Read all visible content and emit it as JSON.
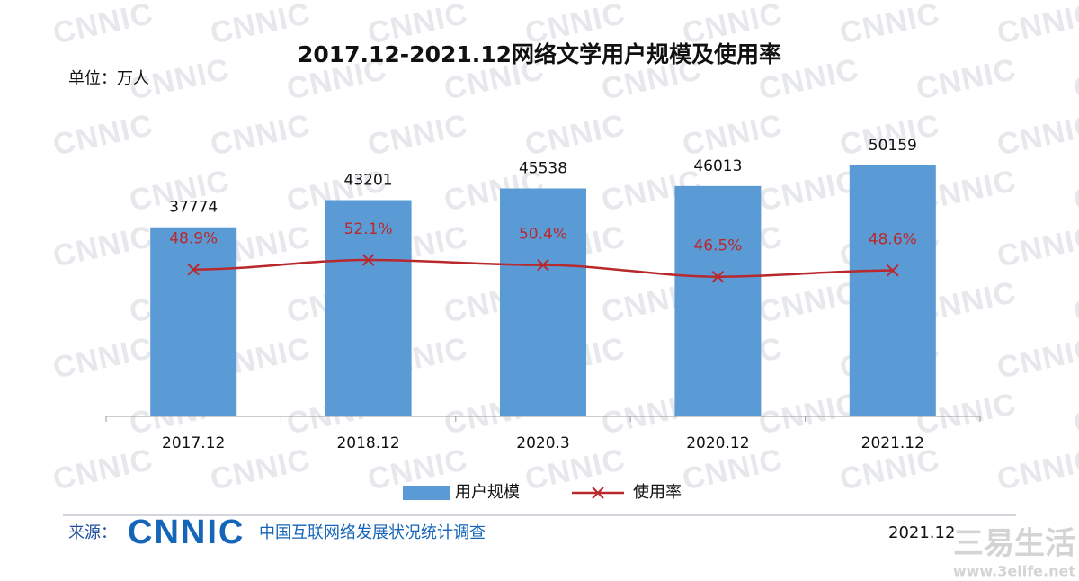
{
  "chart_data": {
    "type": "bar_line",
    "title": "2017.12-2021.12网络文学用户规模及使用率",
    "unit": "单位：万人",
    "categories": [
      "2017.12",
      "2018.12",
      "2020.3",
      "2020.12",
      "2021.12"
    ],
    "series": [
      {
        "name": "用户规模",
        "color": "#5b9bd5",
        "values": [
          37774,
          43201,
          45538,
          46013,
          50159
        ]
      },
      {
        "name": "使用率",
        "color": "#b8282c",
        "axis": "y2",
        "values": [
          48.9,
          52.1,
          50.4,
          46.5,
          48.6
        ],
        "value_labels": [
          "48.9%",
          "52.1%",
          "50.4%",
          "46.5%",
          "48.6%"
        ]
      }
    ],
    "ylim": [
      0,
      60000
    ],
    "y2lim": [
      0,
      100
    ]
  },
  "footer": {
    "source_label": "来源：",
    "logo": "CNNIC",
    "source": "中国互联网络发展状况统计调查",
    "date": "2021.12"
  },
  "watermark": "CNNIC",
  "site_watermark": {
    "name": "三易生活",
    "url": "www.3elife.net"
  }
}
